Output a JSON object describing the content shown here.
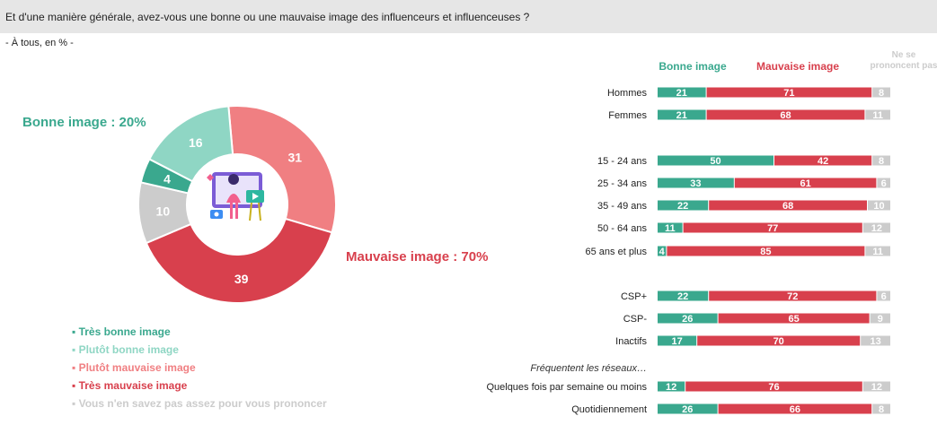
{
  "header": {
    "question": "Et d'une manière générale, avez-vous une bonne ou une mauvaise image des influenceurs et influenceuses ?",
    "base": "- À tous, en % -"
  },
  "colors": {
    "tres_bonne": "#3aa88e",
    "plutot_bonne": "#8fd6c4",
    "plutot_mauvaise": "#f07f82",
    "tres_mauvaise": "#d8404d",
    "nsp": "#cccccc",
    "bonne": "#3aa88e",
    "mauvaise": "#d8404d"
  },
  "summary": {
    "bonne_label": "Bonne image : 20%",
    "mauvaise_label": "Mauvaise image : 70%"
  },
  "legend": [
    {
      "label": "Très bonne image",
      "color": "#3aa88e"
    },
    {
      "label": "Plutôt bonne image",
      "color": "#8fd6c4"
    },
    {
      "label": "Plutôt mauvaise image",
      "color": "#f07f82"
    },
    {
      "label": "Très mauvaise image",
      "color": "#d8404d"
    },
    {
      "label": "Vous n'en savez pas assez pour vous prononcer",
      "color": "#cccccc"
    }
  ],
  "illustration_icon": "influencer-illustration-icon",
  "chart_data": [
    {
      "type": "pie",
      "variant": "donut",
      "slices": [
        {
          "label": "Très bonne image",
          "value": 4,
          "color": "#3aa88e"
        },
        {
          "label": "Plutôt bonne image",
          "value": 16,
          "color": "#8fd6c4"
        },
        {
          "label": "Plutôt mauvaise image",
          "value": 31,
          "color": "#f07f82"
        },
        {
          "label": "Très mauvaise image",
          "value": 39,
          "color": "#d8404d"
        },
        {
          "label": "Vous n'en savez pas assez pour vous prononcer",
          "value": 10,
          "color": "#cccccc"
        }
      ]
    },
    {
      "type": "bar",
      "orientation": "horizontal",
      "stacked": true,
      "column_headers": [
        {
          "label": "Bonne image",
          "color": "#3aa88e"
        },
        {
          "label": "Mauvaise image",
          "color": "#d8404d"
        },
        {
          "label": "Ne se prononcent pas",
          "color": "#cccccc"
        }
      ],
      "groups": [
        {
          "title": "",
          "rows": [
            {
              "label": "Hommes",
              "values": [
                21,
                71,
                8
              ]
            },
            {
              "label": "Femmes",
              "values": [
                21,
                68,
                11
              ]
            }
          ]
        },
        {
          "title": "",
          "rows": [
            {
              "label": "15 - 24 ans",
              "values": [
                50,
                42,
                8
              ]
            },
            {
              "label": "25 - 34 ans",
              "values": [
                33,
                61,
                6
              ]
            },
            {
              "label": "35 - 49 ans",
              "values": [
                22,
                68,
                10
              ]
            },
            {
              "label": "50 - 64 ans",
              "values": [
                11,
                77,
                12
              ]
            },
            {
              "label": "65 ans et plus",
              "values": [
                4,
                85,
                11
              ]
            }
          ]
        },
        {
          "title": "",
          "rows": [
            {
              "label": "CSP+",
              "values": [
                22,
                72,
                6
              ]
            },
            {
              "label": "CSP-",
              "values": [
                26,
                65,
                9
              ]
            },
            {
              "label": "Inactifs",
              "values": [
                17,
                70,
                13
              ]
            }
          ]
        },
        {
          "title": "Fréquentent les réseaux…",
          "rows": [
            {
              "label": "Quelques fois par semaine ou moins",
              "values": [
                12,
                76,
                12
              ]
            },
            {
              "label": "Quotidiennement",
              "values": [
                26,
                66,
                8
              ]
            }
          ]
        }
      ]
    }
  ]
}
